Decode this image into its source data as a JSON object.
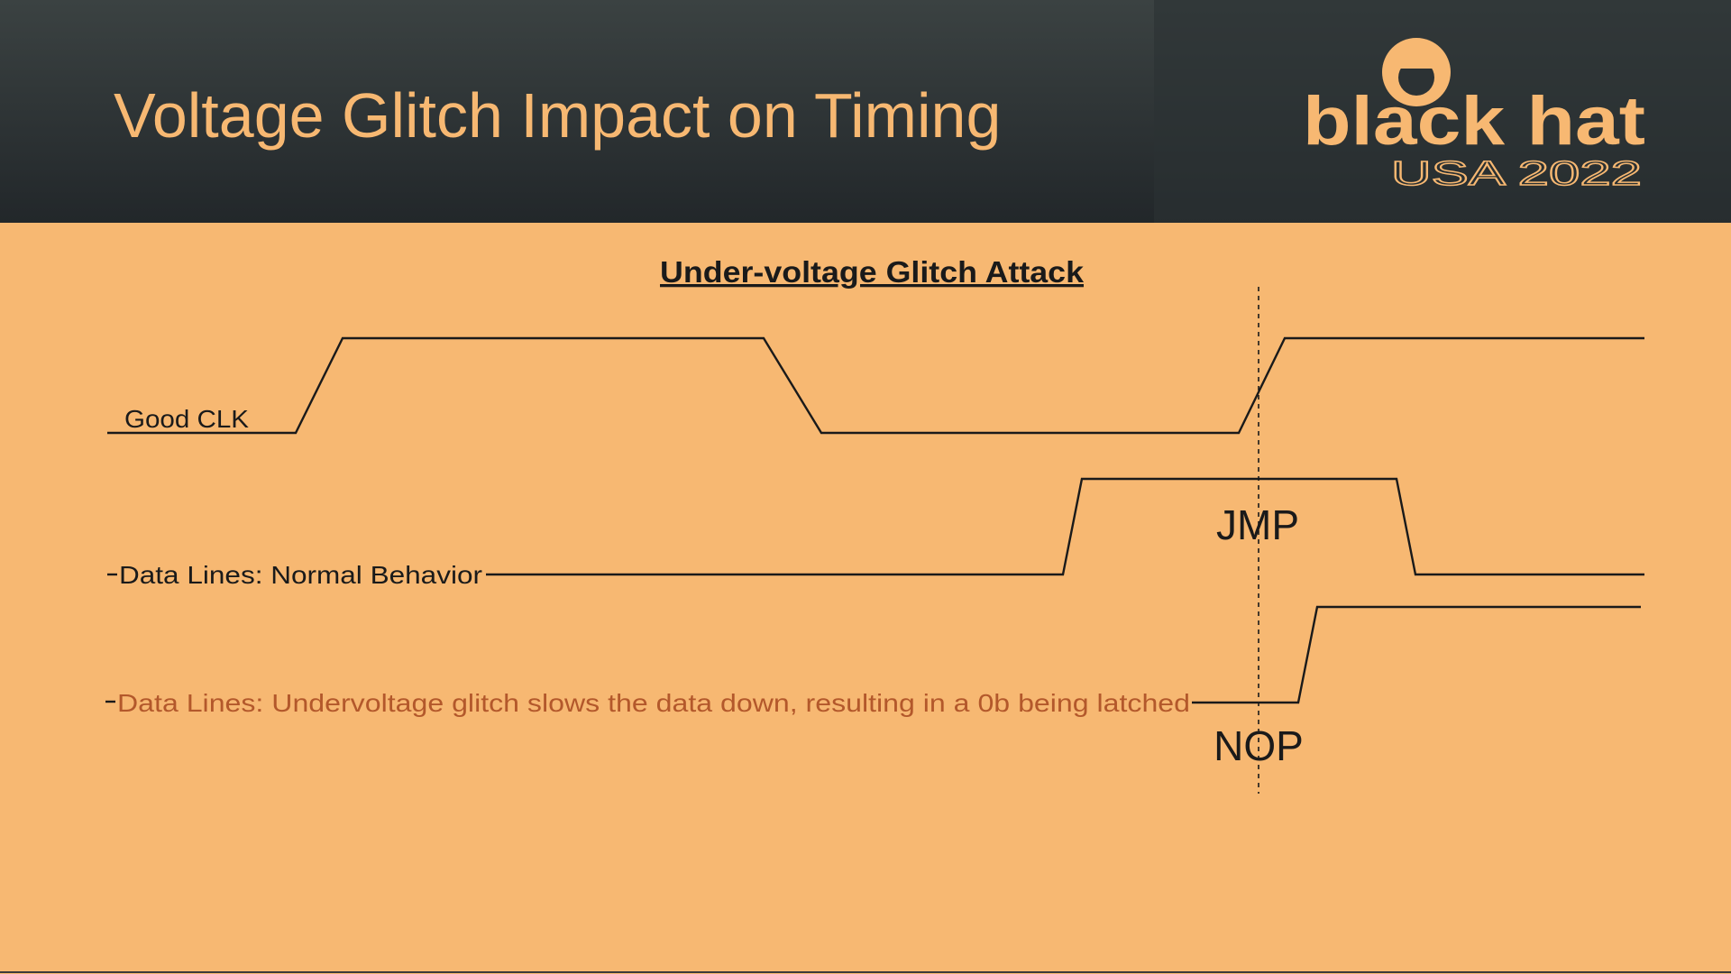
{
  "header": {
    "title": "Voltage Glitch Impact on Timing",
    "logo": {
      "name": "black hat",
      "edition": "USA 2022"
    }
  },
  "diagram": {
    "title": "Under-voltage Glitch Attack",
    "signals": [
      {
        "label": "Good CLK"
      },
      {
        "label": "Data Lines: Normal Behavior",
        "state": "JMP"
      },
      {
        "label": "Data Lines: Undervoltage glitch slows the data down, resulting in a 0b being latched",
        "state": "NOP"
      }
    ]
  }
}
